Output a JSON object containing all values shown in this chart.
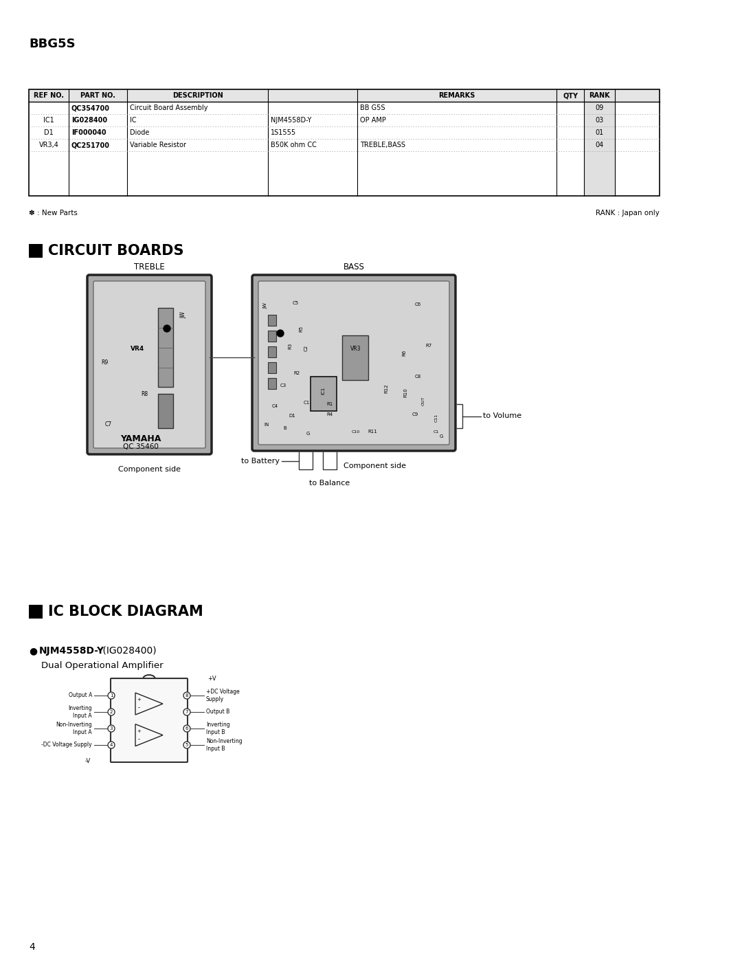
{
  "bg_color": "#ffffff",
  "page_number": "4",
  "header_title": "BBG5S",
  "table_rows": [
    [
      "",
      "QC354700",
      "Circuit Board Assembly",
      "",
      "BB G5S",
      "",
      "09"
    ],
    [
      "IC1",
      "IG028400",
      "IC",
      "NJM4558D-Y",
      "OP AMP",
      "",
      "03"
    ],
    [
      "D1",
      "IF000040",
      "Diode",
      "1S1555",
      "",
      "",
      "01"
    ],
    [
      "VR3,4",
      "QC251700",
      "Variable Resistor",
      "B50K ohm CC",
      "TREBLE,BASS",
      "",
      "04"
    ]
  ],
  "bold_partnos": [
    "QC354700",
    "IG028400",
    "IF000040",
    "QC251700"
  ],
  "footnote_left": "✽ : New Parts",
  "footnote_right": "RANK : Japan only",
  "section1_title": "CIRCUIT BOARDS",
  "treble_label": "TREBLE",
  "bass_label": "BASS",
  "comp_side": "Component side",
  "to_battery": "to Battery",
  "to_balance": "to Balance",
  "to_volume": "to Volume",
  "section2_title": "IC BLOCK DIAGRAM",
  "ic_name_bold": "NJM4558D-Y",
  "ic_name_rest": " (IG028400)",
  "ic_desc": "Dual Operational Amplifier",
  "ic_pins_left": [
    [
      "Output A",
      1
    ],
    [
      "Inverting\nInput A",
      2
    ],
    [
      "Non-Inverting\nInput A",
      3
    ],
    [
      "-DC Voltage Supply",
      4
    ]
  ],
  "ic_pins_right": [
    [
      "+DC Voltage\nSupply",
      8
    ],
    [
      "Output B",
      7
    ],
    [
      "Inverting\nInput B",
      6
    ],
    [
      "Non-Inverting\nInput B",
      5
    ]
  ],
  "gray_dark": "#aaaaaa",
  "gray_mid": "#c0c0c0",
  "gray_light": "#d4d4d4",
  "text_color": "#000000"
}
